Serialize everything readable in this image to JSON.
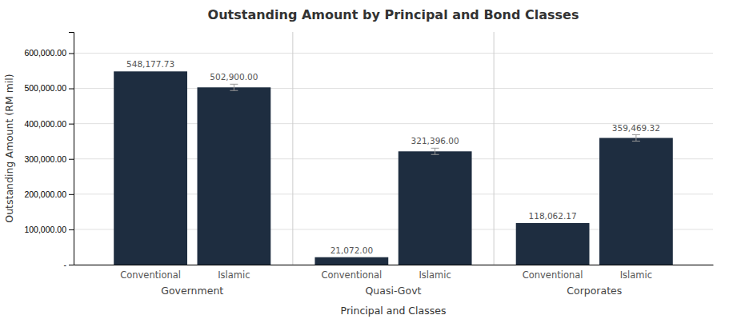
{
  "chart_data": {
    "type": "bar",
    "title": "Outstanding Amount by Principal and Bond Classes",
    "xlabel": "Principal and Classes",
    "ylabel": "Outstanding Amount (RM mil)",
    "categories": [
      "Government",
      "Quasi-Govt",
      "Corporates"
    ],
    "color": "#1e2d40",
    "series": [
      {
        "name": "Conventional",
        "values": [
          548177.73,
          21072.0,
          118062.17
        ],
        "value_labels": [
          "548,177.73",
          "21,072.00",
          "118,062.17"
        ]
      },
      {
        "name": "Islamic",
        "values": [
          502900.0,
          321396.0,
          359469.32
        ],
        "value_labels": [
          "502,900.00",
          "321,396.00",
          "359,469.32"
        ],
        "errors": [
          9000,
          9000,
          9000
        ]
      }
    ],
    "ylim": [
      0,
      660000
    ],
    "yticks": [
      {
        "value": 0,
        "label": "-"
      },
      {
        "value": 100000,
        "label": "100,000.00"
      },
      {
        "value": 200000,
        "label": "200,000.00"
      },
      {
        "value": 300000,
        "label": "300,000.00"
      },
      {
        "value": 400000,
        "label": "400,000.00"
      },
      {
        "value": 500000,
        "label": "500,000.00"
      },
      {
        "value": 600000,
        "label": "600,000.00"
      }
    ],
    "grid": true,
    "data_labels": true
  }
}
